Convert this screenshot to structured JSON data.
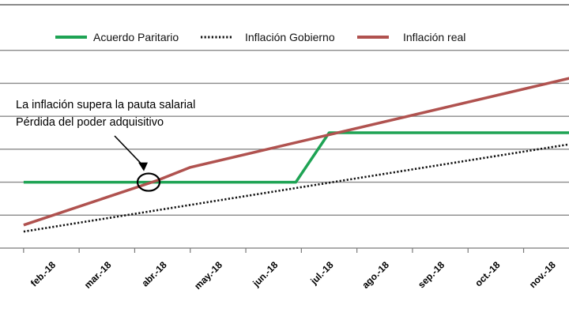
{
  "chart_data": {
    "type": "line",
    "title": "",
    "xlabel": "",
    "ylabel": "",
    "categories": [
      "feb.-18",
      "mar.-18",
      "abr.-18",
      "may.-18",
      "jun.-18",
      "jul.-18",
      "ago.-18",
      "sep.-18",
      "oct.-18",
      "nov.-18"
    ],
    "series": [
      {
        "name": "Acuerdo Paritario",
        "color": "#1ea354",
        "style": "solid",
        "points": [
          [
            -0.5,
            1.5
          ],
          [
            4.4,
            1.5
          ],
          [
            5.0,
            3.0
          ],
          [
            9.7,
            3.0
          ]
        ]
      },
      {
        "name": "Inflación Gobierno",
        "color": "#111111",
        "style": "dotted",
        "points": [
          [
            -0.5,
            0.0
          ],
          [
            9.7,
            2.75
          ]
        ]
      },
      {
        "name": "Inflación real",
        "color": "#b0524f",
        "style": "solid",
        "points": [
          [
            -0.5,
            0.2
          ],
          [
            1.9,
            1.55
          ],
          [
            2.5,
            1.95
          ],
          [
            9.7,
            4.8
          ]
        ]
      }
    ],
    "ylim": [
      -0.5,
      6.5
    ],
    "gridlines": [
      0.5,
      1.5,
      2.5,
      3.5,
      4.5,
      5.5
    ],
    "grid": true,
    "legend_position": "top",
    "annotation": {
      "lines": [
        "La inflación supera la pauta salarial",
        "Pérdida del poder adquisitivo"
      ],
      "target": [
        1.75,
        1.5
      ]
    }
  }
}
